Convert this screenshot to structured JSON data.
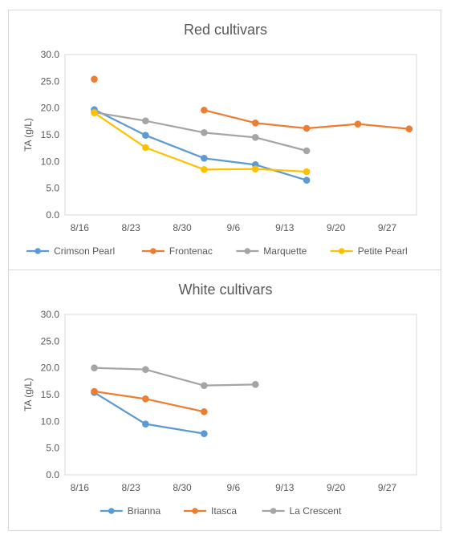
{
  "chart_data": [
    {
      "type": "line",
      "title": "Red cultivars",
      "ylabel": "TA (g/L)",
      "xlabel": "",
      "ylim": [
        0,
        30
      ],
      "yticks": [
        "0.0",
        "5.0",
        "10.0",
        "15.0",
        "20.0",
        "25.0",
        "30.0"
      ],
      "xlim": [
        "8/14",
        "10/1"
      ],
      "xticks": [
        "8/16",
        "8/23",
        "8/30",
        "9/6",
        "9/13",
        "9/20",
        "9/27"
      ],
      "grid": false,
      "legend_position": "bottom",
      "series": [
        {
          "name": "Crimson Pearl",
          "color": "#5b9bd5",
          "points": [
            [
              "8/18",
              19.7
            ],
            [
              "8/25",
              14.9
            ],
            [
              "9/2",
              10.6
            ],
            [
              "9/9",
              9.4
            ],
            [
              "9/16",
              6.5
            ]
          ]
        },
        {
          "name": "Frontenac",
          "color": "#ed7d31",
          "points": [
            [
              "8/18",
              25.4
            ],
            [
              "9/2",
              19.6
            ],
            [
              "9/9",
              17.2
            ],
            [
              "9/16",
              16.2
            ],
            [
              "9/23",
              17.0
            ],
            [
              "9/30",
              16.1
            ]
          ],
          "line_from_index": 1
        },
        {
          "name": "Marquette",
          "color": "#a5a5a5",
          "points": [
            [
              "8/18",
              19.2
            ],
            [
              "8/25",
              17.6
            ],
            [
              "9/2",
              15.4
            ],
            [
              "9/9",
              14.5
            ],
            [
              "9/16",
              12.0
            ]
          ]
        },
        {
          "name": "Petite Pearl",
          "color": "#ffc000",
          "points": [
            [
              "8/18",
              19.1
            ],
            [
              "8/25",
              12.6
            ],
            [
              "9/2",
              8.5
            ],
            [
              "9/9",
              8.6
            ],
            [
              "9/16",
              8.1
            ]
          ]
        }
      ]
    },
    {
      "type": "line",
      "title": "White cultivars",
      "ylabel": "TA (g/L)",
      "xlabel": "",
      "ylim": [
        0,
        30
      ],
      "yticks": [
        "0.0",
        "5.0",
        "10.0",
        "15.0",
        "20.0",
        "25.0",
        "30.0"
      ],
      "xlim": [
        "8/14",
        "10/1"
      ],
      "xticks": [
        "8/16",
        "8/23",
        "8/30",
        "9/6",
        "9/13",
        "9/20",
        "9/27"
      ],
      "grid": false,
      "legend_position": "bottom",
      "series": [
        {
          "name": "Brianna",
          "color": "#5b9bd5",
          "points": [
            [
              "8/18",
              15.4
            ],
            [
              "8/25",
              9.5
            ],
            [
              "9/2",
              7.7
            ]
          ]
        },
        {
          "name": "Itasca",
          "color": "#ed7d31",
          "points": [
            [
              "8/18",
              15.6
            ],
            [
              "8/25",
              14.2
            ],
            [
              "9/2",
              11.8
            ]
          ]
        },
        {
          "name": "La Crescent",
          "color": "#a5a5a5",
          "points": [
            [
              "8/18",
              20.0
            ],
            [
              "8/25",
              19.7
            ],
            [
              "9/2",
              16.7
            ],
            [
              "9/9",
              16.9
            ]
          ]
        }
      ]
    }
  ]
}
